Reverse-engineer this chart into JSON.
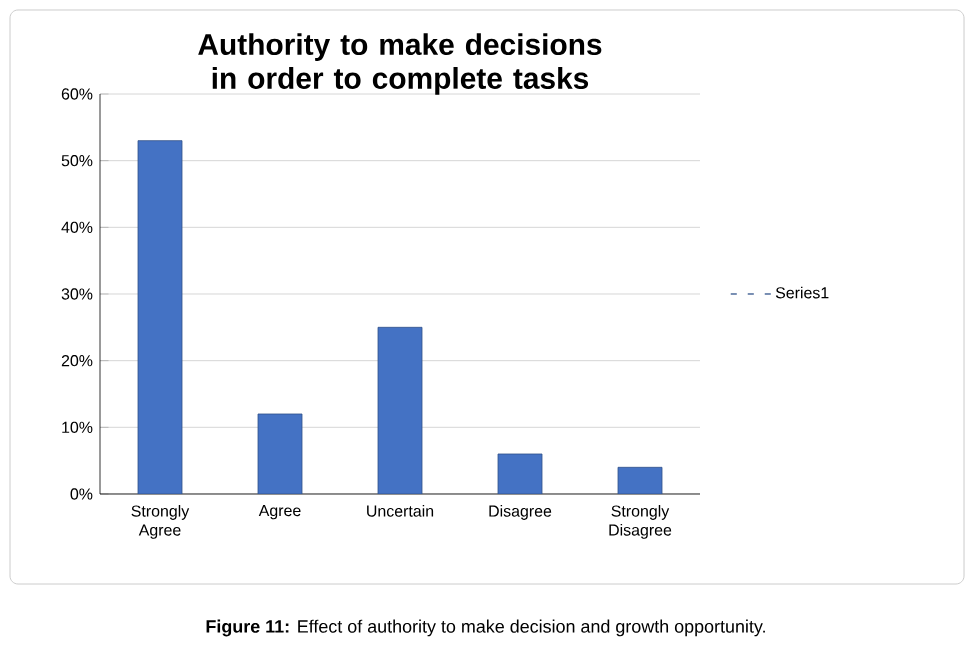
{
  "chart_data": {
    "type": "bar",
    "title": "Authority to make decisions in order to complete tasks",
    "categories": [
      "Strongly Agree",
      "Agree",
      "Uncertain",
      "Disagree",
      "Strongly Disagree"
    ],
    "series": [
      {
        "name": "Series1",
        "color": "#4472c4",
        "values": [
          53,
          12,
          25,
          6,
          4
        ]
      }
    ],
    "ylim": [
      0,
      60
    ],
    "yticks": [
      {
        "value": 0,
        "label": "0%"
      },
      {
        "value": 10,
        "label": "10%"
      },
      {
        "value": 20,
        "label": "20%"
      },
      {
        "value": 30,
        "label": "30%"
      },
      {
        "value": 40,
        "label": "40%"
      },
      {
        "value": 50,
        "label": "50%"
      },
      {
        "value": 60,
        "label": "60%"
      }
    ],
    "grid": "y",
    "legend": "right",
    "annotations": [
      "**Figure 11:** Effect of authority to make decision and growth opportunity."
    ]
  }
}
